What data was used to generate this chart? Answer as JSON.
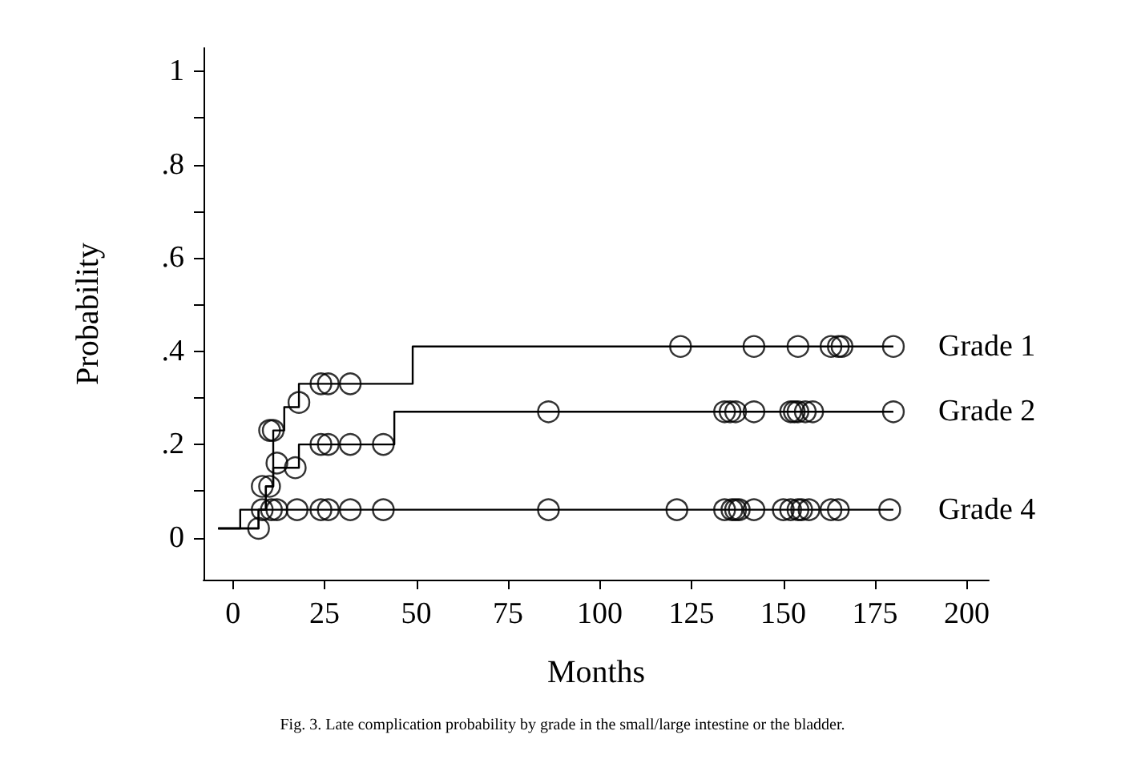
{
  "chart_data": {
    "type": "step",
    "xlabel": "Months",
    "ylabel": "Probability",
    "annotations": [
      "Fig. 3. Late complication probability by grade in the small/large intestine or the bladder."
    ],
    "xlim": [
      -8,
      206
    ],
    "xticks": [
      0,
      25,
      50,
      75,
      100,
      125,
      150,
      175,
      200
    ],
    "ylim": [
      -0.09,
      1.05
    ],
    "yticks": [
      {
        "value": 0,
        "label": "0"
      },
      {
        "value": 0.1,
        "label": null
      },
      {
        "value": 0.2,
        "label": ".2"
      },
      {
        "value": 0.3,
        "label": null
      },
      {
        "value": 0.4,
        "label": ".4"
      },
      {
        "value": 0.5,
        "label": null
      },
      {
        "value": 0.6,
        "label": ".6"
      },
      {
        "value": 0.7,
        "label": null
      },
      {
        "value": 0.8,
        "label": ".8"
      },
      {
        "value": 0.9,
        "label": null
      },
      {
        "value": 1,
        "label": "1"
      }
    ],
    "grid": false,
    "legend": false,
    "series": [
      {
        "name": "Grade 1",
        "color": "#000000",
        "marker": "none",
        "x": [
          -4,
          7,
          9,
          11,
          14,
          18,
          49,
          180
        ],
        "values": [
          0.02,
          0.06,
          0.11,
          0.23,
          0.28,
          0.33,
          0.41,
          0.41
        ]
      },
      {
        "name": "Grade 2",
        "color": "#000000",
        "marker": "none",
        "x": [
          -4,
          7,
          9,
          11,
          18,
          44,
          180
        ],
        "values": [
          0.02,
          0.06,
          0.11,
          0.15,
          0.2,
          0.27,
          0.27
        ]
      },
      {
        "name": "Grade 4",
        "color": "#000000",
        "marker": "none",
        "x": [
          -4,
          2,
          180
        ],
        "values": [
          0.02,
          0.06,
          0.06
        ]
      },
      {
        "type": "scatter",
        "color": "#000000",
        "marker": "circle",
        "x": [
          10,
          11,
          18,
          24,
          26,
          32,
          122,
          142,
          154,
          163,
          165,
          166,
          180
        ],
        "values": [
          0.23,
          0.23,
          0.29,
          0.33,
          0.33,
          0.33,
          0.41,
          0.41,
          0.41,
          0.41,
          0.41,
          0.41,
          0.41
        ]
      },
      {
        "type": "scatter",
        "color": "#000000",
        "marker": "circle",
        "x": [
          8,
          10,
          12,
          17,
          24,
          26,
          32,
          41,
          86,
          134,
          135.5,
          137,
          142,
          152,
          153,
          154,
          156,
          158,
          180
        ],
        "values": [
          0.11,
          0.11,
          0.16,
          0.15,
          0.2,
          0.2,
          0.2,
          0.2,
          0.27,
          0.27,
          0.27,
          0.27,
          0.27,
          0.27,
          0.27,
          0.27,
          0.27,
          0.27,
          0.27
        ]
      },
      {
        "type": "scatter",
        "color": "#000000",
        "marker": "circle",
        "x": [
          7,
          8,
          10.5,
          12,
          17.5,
          24,
          26,
          32,
          41,
          86,
          121,
          134,
          136,
          137,
          138,
          142,
          150,
          152,
          154,
          155,
          157,
          163,
          165,
          179
        ],
        "values": [
          0.02,
          0.06,
          0.06,
          0.06,
          0.06,
          0.06,
          0.06,
          0.06,
          0.06,
          0.06,
          0.06,
          0.06,
          0.06,
          0.06,
          0.06,
          0.06,
          0.06,
          0.06,
          0.06,
          0.06,
          0.06,
          0.06,
          0.06,
          0.06
        ]
      }
    ]
  }
}
